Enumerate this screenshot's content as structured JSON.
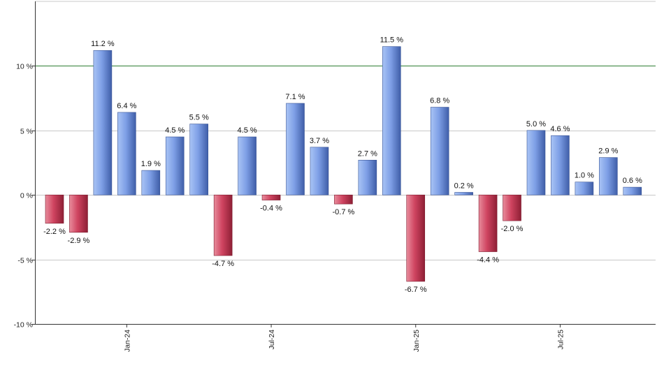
{
  "chart_data": {
    "type": "bar",
    "title": "",
    "xlabel": "",
    "ylabel": "",
    "months": [
      "2023-10",
      "2023-11",
      "2023-12",
      "2024-01",
      "2024-02",
      "2024-03",
      "2024-04",
      "2024-05",
      "2024-06",
      "2024-07",
      "2024-08",
      "2024-09",
      "2024-10",
      "2024-11",
      "2024-12",
      "2025-01",
      "2025-02",
      "2025-03",
      "2025-04",
      "2025-05",
      "2025-06",
      "2025-07",
      "2025-08",
      "2025-09",
      "2025-10"
    ],
    "values": [
      -2.2,
      -2.9,
      11.2,
      6.4,
      1.9,
      4.5,
      5.5,
      -4.7,
      4.5,
      -0.4,
      7.1,
      3.7,
      -0.7,
      2.7,
      11.5,
      -6.7,
      6.8,
      0.2,
      -4.4,
      -2.0,
      5.0,
      4.6,
      1.0,
      2.9,
      0.6
    ],
    "value_labels": [
      "-2.2 %",
      "-2.9 %",
      "11.2 %",
      "6.4 %",
      "1.9 %",
      "4.5 %",
      "5.5 %",
      "-4.7 %",
      "4.5 %",
      "-0.4 %",
      "7.1 %",
      "3.7 %",
      "-0.7 %",
      "2.7 %",
      "11.5 %",
      "-6.7 %",
      "6.8 %",
      "0.2 %",
      "-4.4 %",
      "-2.0 %",
      "5.0 %",
      "4.6 %",
      "1.0 %",
      "2.9 %",
      "0.6 %"
    ],
    "ylim": [
      -10,
      15
    ],
    "yticks": [
      -10,
      -5,
      0,
      5,
      10
    ],
    "ytick_labels": [
      "-10 %",
      "-5 %",
      "0 %",
      "5 %",
      "10 %"
    ],
    "xtick_labels": [
      {
        "label": "Jan-24",
        "month": "2024-01"
      },
      {
        "label": "Jul-24",
        "month": "2024-07"
      },
      {
        "label": "Jan-25",
        "month": "2025-01"
      },
      {
        "label": "Jul-25",
        "month": "2025-07"
      }
    ],
    "reference_line": 10,
    "colors": {
      "positive": "#5b7fcf",
      "negative": "#c23a52",
      "reference_line": "#2e7d32",
      "grid": "#c8c8c8",
      "axis": "#333333"
    },
    "grid": true
  }
}
